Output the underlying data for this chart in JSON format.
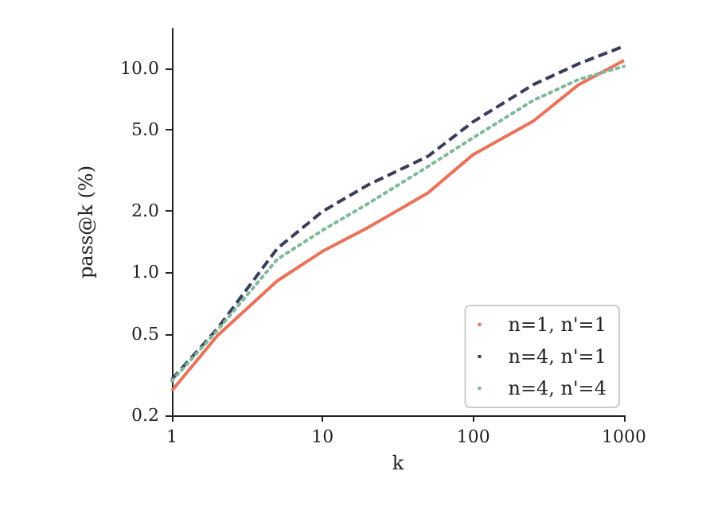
{
  "chart_data": {
    "type": "line",
    "xlabel": "k",
    "ylabel": "pass@k (%)",
    "log": "xy",
    "grid": false,
    "legend": "bottom right",
    "marker": "none",
    "x": [
      1,
      2,
      5,
      10,
      20,
      50,
      100,
      250,
      500,
      1000
    ],
    "xlim": [
      1,
      1000
    ],
    "xticks": [
      1,
      10,
      100,
      1000
    ],
    "ylim": [
      0.2,
      15.6
    ],
    "yticks": [
      {
        "value": 0.2,
        "label": "0.2"
      },
      {
        "value": 0.5,
        "label": "0.5"
      },
      {
        "value": 1,
        "label": "1.0"
      },
      {
        "value": 2,
        "label": "2.0"
      },
      {
        "value": 5,
        "label": "5.0"
      },
      {
        "value": 10,
        "label": "10.0"
      }
    ],
    "series": [
      {
        "name": "n=1, n'=1",
        "color": "#e8735a",
        "line_style": "solid",
        "values": [
          0.264,
          0.49,
          0.91,
          1.27,
          1.66,
          2.45,
          3.78,
          5.5,
          8.3,
          10.9
        ]
      },
      {
        "name": "n=4, n'=1",
        "color": "#3b3d5c",
        "line_style": "dashed",
        "values": [
          0.3,
          0.53,
          1.31,
          1.99,
          2.68,
          3.7,
          5.47,
          8.3,
          10.5,
          12.8
        ]
      },
      {
        "name": "n=4, n'=4",
        "color": "#7fb89a",
        "line_style": "dotted",
        "values": [
          0.295,
          0.52,
          1.16,
          1.61,
          2.17,
          3.3,
          4.57,
          6.95,
          8.8,
          10.2
        ]
      }
    ]
  }
}
